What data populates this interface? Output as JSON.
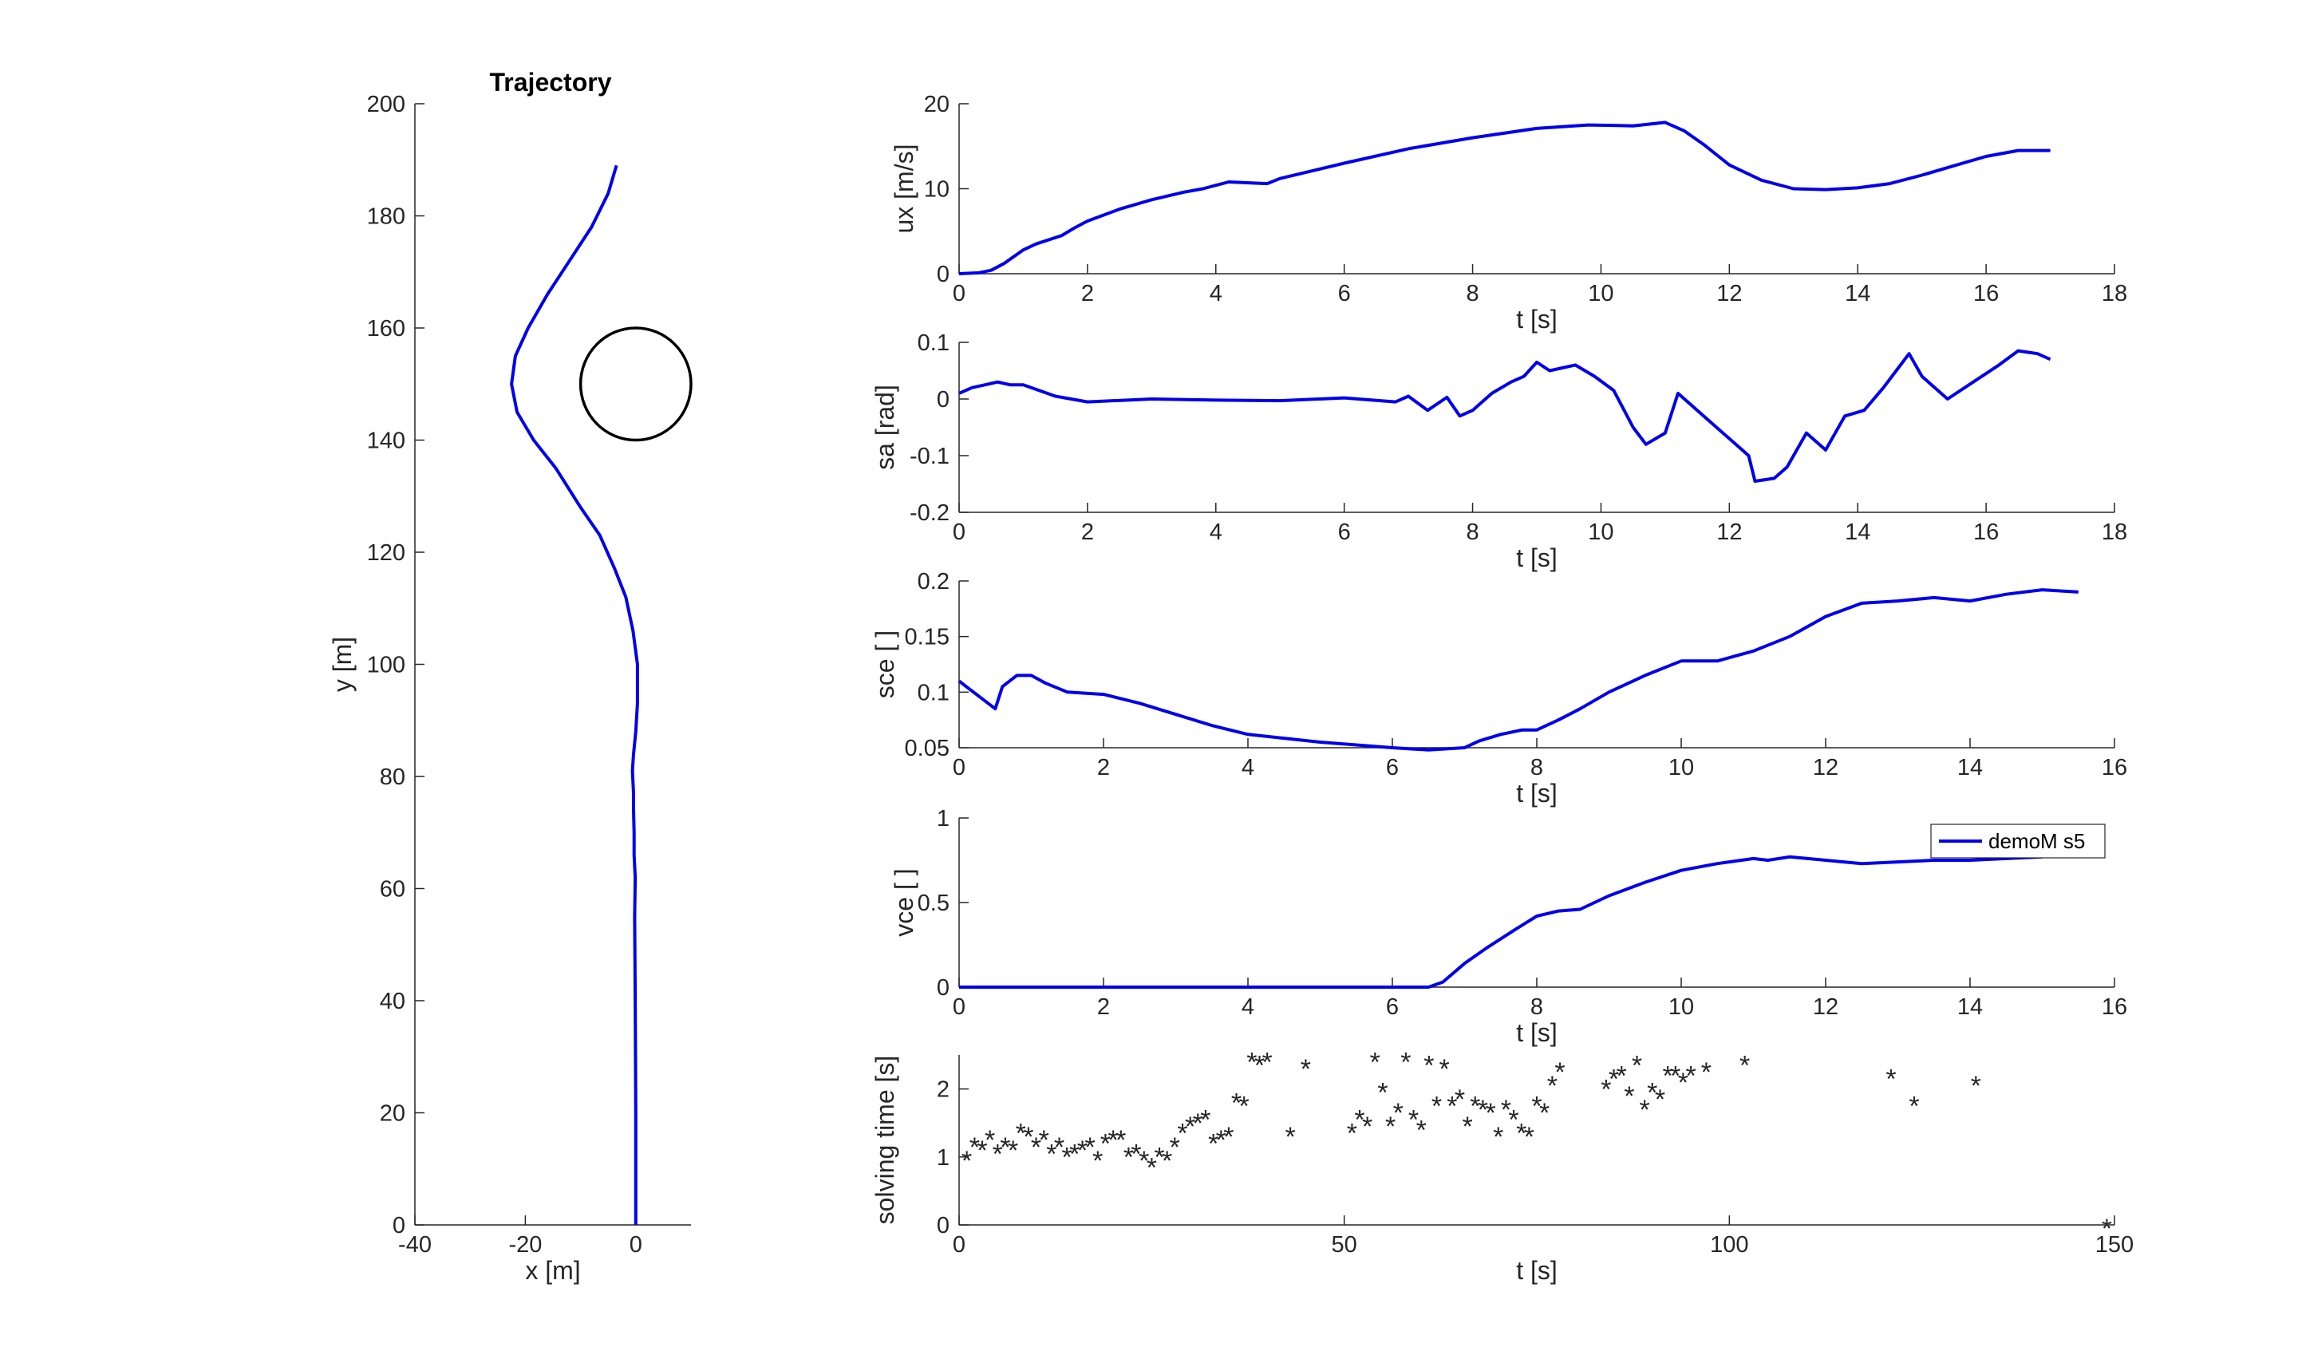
{
  "colors": {
    "series": "#0000ee",
    "axis": "#262626",
    "obstacle": "#000000",
    "background": "#ffffff"
  },
  "chart_data": [
    {
      "id": "trajectory",
      "type": "line",
      "title": "Trajectory",
      "xlabel": "x [m]",
      "ylabel": "y [m]",
      "xlim": [
        -40,
        10
      ],
      "ylim": [
        0,
        200
      ],
      "xticks": [
        -40,
        -20,
        0
      ],
      "yticks": [
        0,
        20,
        40,
        60,
        80,
        100,
        120,
        140,
        160,
        180,
        200
      ],
      "series": [
        {
          "x": [
            0,
            0,
            -0.1,
            -0.2,
            -0.1,
            -0.3,
            -0.3,
            -0.4,
            -0.4,
            -0.5,
            -0.6,
            -0.4,
            0,
            0.3,
            0.3,
            -0.5,
            -1.8,
            -3.8,
            -6.5,
            -10,
            -14.5,
            -18.5,
            -21.5,
            -22.5,
            -21.8,
            -19.5,
            -16,
            -12,
            -8,
            -5,
            -3.5
          ],
          "y": [
            0,
            20,
            40,
            55,
            62,
            66,
            70,
            74,
            77,
            79,
            81,
            84,
            88,
            93,
            100,
            106,
            112,
            117,
            123,
            128,
            135,
            140,
            145,
            150,
            155,
            160,
            166,
            172,
            178,
            184,
            189
          ]
        }
      ],
      "obstacle": {
        "shape": "circle",
        "center": [
          0,
          150
        ],
        "radius": 10
      }
    },
    {
      "id": "ux",
      "type": "line",
      "xlabel": "t [s]",
      "ylabel": "ux [m/s]",
      "xlim": [
        0,
        18
      ],
      "ylim": [
        0,
        20
      ],
      "xticks": [
        0,
        2,
        4,
        6,
        8,
        10,
        12,
        14,
        16,
        18
      ],
      "yticks": [
        0,
        10,
        20
      ],
      "series": [
        {
          "x": [
            0,
            0.3,
            0.5,
            0.7,
            1.0,
            1.2,
            1.6,
            1.8,
            2.0,
            2.5,
            3.0,
            3.5,
            3.8,
            4.0,
            4.2,
            4.8,
            5.0,
            6.0,
            7.0,
            8.0,
            9.0,
            9.8,
            10.5,
            11.0,
            11.3,
            11.6,
            12.0,
            12.5,
            13.0,
            13.5,
            14.0,
            14.5,
            15.0,
            15.5,
            16.0,
            16.5,
            17.0
          ],
          "y": [
            0,
            0.1,
            0.4,
            1.2,
            2.8,
            3.5,
            4.5,
            5.4,
            6.2,
            7.6,
            8.7,
            9.6,
            10.0,
            10.4,
            10.8,
            10.6,
            11.2,
            13.0,
            14.7,
            16.0,
            17.1,
            17.5,
            17.4,
            17.8,
            16.8,
            15.2,
            12.8,
            11.0,
            10.0,
            9.9,
            10.1,
            10.6,
            11.6,
            12.7,
            13.8,
            14.5,
            14.5
          ]
        }
      ]
    },
    {
      "id": "sa",
      "type": "line",
      "xlabel": "t [s]",
      "ylabel": "sa [rad]",
      "xlim": [
        0,
        18
      ],
      "ylim": [
        -0.2,
        0.1
      ],
      "xticks": [
        0,
        2,
        4,
        6,
        8,
        10,
        12,
        14,
        16,
        18
      ],
      "yticks": [
        -0.2,
        -0.1,
        0,
        0.1
      ],
      "series": [
        {
          "x": [
            0,
            0.2,
            0.4,
            0.6,
            0.8,
            1.0,
            1.5,
            2.0,
            3.0,
            4.0,
            5.0,
            6.0,
            6.8,
            7.0,
            7.3,
            7.6,
            7.8,
            8.0,
            8.3,
            8.6,
            8.8,
            9.0,
            9.2,
            9.6,
            9.9,
            10.2,
            10.5,
            10.7,
            11.0,
            11.2,
            11.5,
            11.8,
            12.1,
            12.3,
            12.4,
            12.7,
            12.9,
            13.2,
            13.5,
            13.8,
            14.1,
            14.4,
            14.6,
            14.8,
            15.0,
            15.4,
            15.8,
            16.2,
            16.5,
            16.8,
            17.0
          ],
          "y": [
            0.01,
            0.02,
            0.025,
            0.03,
            0.025,
            0.025,
            0.005,
            -0.005,
            0,
            -0.002,
            -0.003,
            0.002,
            -0.005,
            0.005,
            -0.02,
            0.003,
            -0.03,
            -0.02,
            0.01,
            0.03,
            0.04,
            0.065,
            0.05,
            0.06,
            0.04,
            0.015,
            -0.05,
            -0.08,
            -0.06,
            0.01,
            -0.02,
            -0.05,
            -0.08,
            -0.1,
            -0.145,
            -0.14,
            -0.12,
            -0.06,
            -0.09,
            -0.03,
            -0.02,
            0.02,
            0.05,
            0.08,
            0.04,
            0.0,
            0.03,
            0.06,
            0.085,
            0.08,
            0.07
          ]
        }
      ]
    },
    {
      "id": "sce",
      "type": "line",
      "xlabel": "t [s]",
      "ylabel": "sce [ ]",
      "xlim": [
        0,
        16
      ],
      "ylim": [
        0.05,
        0.2
      ],
      "xticks": [
        0,
        2,
        4,
        6,
        8,
        10,
        12,
        14,
        16
      ],
      "yticks": [
        0.05,
        0.1,
        0.15,
        0.2
      ],
      "series": [
        {
          "x": [
            0,
            0.1,
            0.3,
            0.5,
            0.6,
            0.8,
            1.0,
            1.2,
            1.5,
            2.0,
            2.5,
            3.0,
            3.5,
            4.0,
            5.0,
            6.0,
            6.5,
            7.0,
            7.2,
            7.5,
            7.8,
            8.0,
            8.3,
            8.6,
            9.0,
            9.5,
            10.0,
            10.5,
            11.0,
            11.5,
            12.0,
            12.5,
            13.0,
            13.5,
            14.0,
            14.5,
            15.0,
            15.5
          ],
          "y": [
            0.11,
            0.105,
            0.095,
            0.085,
            0.105,
            0.115,
            0.115,
            0.108,
            0.1,
            0.098,
            0.09,
            0.08,
            0.07,
            0.062,
            0.055,
            0.05,
            0.048,
            0.05,
            0.056,
            0.062,
            0.066,
            0.066,
            0.075,
            0.085,
            0.1,
            0.115,
            0.128,
            0.128,
            0.137,
            0.15,
            0.168,
            0.18,
            0.182,
            0.185,
            0.182,
            0.188,
            0.192,
            0.19
          ]
        }
      ]
    },
    {
      "id": "vce",
      "type": "line",
      "xlabel": "t [s]",
      "ylabel": "vce [ ]",
      "xlim": [
        0,
        16
      ],
      "ylim": [
        0,
        1
      ],
      "xticks": [
        0,
        2,
        4,
        6,
        8,
        10,
        12,
        14,
        16
      ],
      "yticks": [
        0,
        0.5,
        1
      ],
      "legend": {
        "position": "top-right",
        "entries": [
          "demoM s5"
        ]
      },
      "series": [
        {
          "name": "demoM s5",
          "x": [
            0,
            6.5,
            6.7,
            7.0,
            7.3,
            7.7,
            8.0,
            8.3,
            8.6,
            9.0,
            9.5,
            10.0,
            10.5,
            11.0,
            11.2,
            11.5,
            12.0,
            12.5,
            13.0,
            13.5,
            14.0,
            14.5,
            15.0
          ],
          "y": [
            0,
            0,
            0.03,
            0.14,
            0.23,
            0.34,
            0.42,
            0.45,
            0.46,
            0.54,
            0.62,
            0.69,
            0.73,
            0.76,
            0.75,
            0.77,
            0.75,
            0.73,
            0.74,
            0.75,
            0.75,
            0.76,
            0.77
          ]
        }
      ]
    },
    {
      "id": "solving_time",
      "type": "scatter",
      "xlabel": "t [s]",
      "ylabel": "solving time [s]",
      "xlim": [
        0,
        150
      ],
      "ylim": [
        0,
        2.5
      ],
      "xticks": [
        0,
        50,
        100,
        150
      ],
      "yticks": [
        0,
        1,
        2
      ],
      "series": [
        {
          "x": [
            1,
            2,
            3,
            4,
            5,
            6,
            7,
            8,
            9,
            10,
            11,
            12,
            13,
            14,
            15,
            16,
            17,
            18,
            19,
            20,
            21,
            22,
            23,
            24,
            25,
            26,
            27,
            28,
            29,
            30,
            31,
            32,
            33,
            34,
            35,
            36,
            37,
            38,
            39,
            40,
            43,
            45,
            51,
            52,
            53,
            54,
            55,
            56,
            57,
            58,
            59,
            60,
            61,
            62,
            63,
            64,
            65,
            66,
            67,
            68,
            69,
            70,
            71,
            72,
            73,
            74,
            75,
            76,
            77,
            78,
            84,
            85,
            86,
            87,
            88,
            89,
            90,
            91,
            92,
            93,
            94,
            95,
            97,
            102,
            121,
            124,
            132,
            149
          ],
          "y": [
            1.0,
            1.2,
            1.15,
            1.3,
            1.1,
            1.2,
            1.15,
            1.4,
            1.35,
            1.2,
            1.3,
            1.1,
            1.2,
            1.05,
            1.1,
            1.15,
            1.2,
            1.0,
            1.25,
            1.3,
            1.3,
            1.05,
            1.1,
            1.0,
            0.9,
            1.05,
            1.0,
            1.2,
            1.4,
            1.5,
            1.55,
            1.6,
            1.25,
            1.3,
            1.35,
            1.85,
            1.8,
            2.45,
            2.4,
            2.45,
            1.35,
            2.35,
            1.4,
            1.6,
            1.5,
            2.45,
            2.0,
            1.5,
            1.7,
            2.45,
            1.6,
            1.45,
            2.4,
            1.8,
            2.35,
            1.8,
            1.9,
            1.5,
            1.8,
            1.75,
            1.7,
            1.35,
            1.75,
            1.6,
            1.4,
            1.35,
            1.8,
            1.7,
            2.1,
            2.3,
            2.05,
            2.2,
            2.25,
            1.95,
            2.4,
            1.75,
            2.0,
            1.9,
            2.25,
            2.25,
            2.15,
            2.25,
            2.3,
            2.4,
            2.2,
            1.8,
            2.1,
            0.0
          ]
        }
      ]
    }
  ]
}
